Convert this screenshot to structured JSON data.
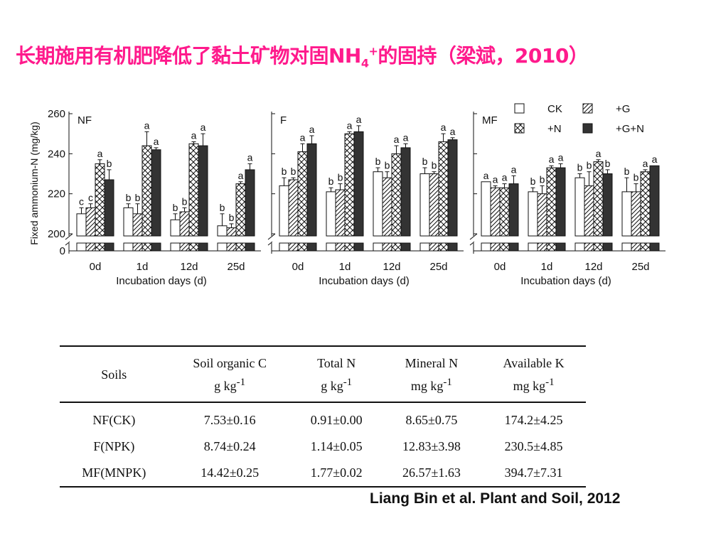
{
  "slide": {
    "title_main": "长期施用有机肥降低了黏土矿物对固NH",
    "title_sub": "4",
    "title_sup": "+",
    "title_tail": "的固持（梁斌，2010）",
    "citation": "Liang Bin et al. Plant and Soil, 2012"
  },
  "colors": {
    "title": "#ff1a8c",
    "solid_bar": "#333333",
    "open_bar": "#ffffff",
    "axis": "#111111"
  },
  "chart_data": {
    "type": "bar",
    "ylabel": "Fixed ammonium-N (mg/kg)",
    "xlabel": "Incubation days (d)",
    "ylim": [
      200,
      260
    ],
    "y_break": true,
    "yticks": [
      "260",
      "240",
      "220",
      "200",
      "0"
    ],
    "categories": [
      "0d",
      "1d",
      "12d",
      "25d"
    ],
    "legend": {
      "placement": "top-right",
      "entries": [
        {
          "label": "CK",
          "pattern": "open"
        },
        {
          "label": "+G",
          "pattern": "hatch"
        },
        {
          "label": "+N",
          "pattern": "cross"
        },
        {
          "label": "+G+N",
          "pattern": "solid"
        }
      ]
    },
    "panels": [
      {
        "name": "NF",
        "series": [
          {
            "pattern": "open",
            "values": [
              210,
              213,
              207,
              204
            ],
            "errors": [
              3,
              2,
              3,
              6
            ],
            "letters": [
              "c",
              "b",
              "b",
              "b"
            ]
          },
          {
            "pattern": "hatch",
            "values": [
              213,
              210,
              211,
              203
            ],
            "errors": [
              2,
              5,
              2,
              2
            ],
            "letters": [
              "c",
              "b",
              "b",
              "b"
            ]
          },
          {
            "pattern": "cross",
            "values": [
              235,
              244,
              245,
              225
            ],
            "errors": [
              2,
              7,
              1,
              1
            ],
            "letters": [
              "a",
              "a",
              "a",
              "a"
            ]
          },
          {
            "pattern": "solid",
            "values": [
              227,
              242,
              244,
              232
            ],
            "errors": [
              5,
              1,
              6,
              3
            ],
            "letters": [
              "b",
              "a",
              "a",
              "a"
            ]
          }
        ]
      },
      {
        "name": "F",
        "series": [
          {
            "pattern": "open",
            "values": [
              224,
              221,
              231,
              230
            ],
            "errors": [
              4,
              2,
              2,
              3
            ],
            "letters": [
              "b",
              "b",
              "b",
              "b"
            ]
          },
          {
            "pattern": "hatch",
            "values": [
              227,
              222,
              228,
              230
            ],
            "errors": [
              1,
              3,
              3,
              1
            ],
            "letters": [
              "b",
              "b",
              "b",
              "b"
            ]
          },
          {
            "pattern": "cross",
            "values": [
              241,
              250,
              240,
              246
            ],
            "errors": [
              4,
              1,
              4,
              4
            ],
            "letters": [
              "a",
              "a",
              "a",
              "a"
            ]
          },
          {
            "pattern": "solid",
            "values": [
              245,
              251,
              243,
              247
            ],
            "errors": [
              4,
              3,
              2,
              1
            ],
            "letters": [
              "a",
              "a",
              "a",
              "a"
            ]
          }
        ]
      },
      {
        "name": "MF",
        "series": [
          {
            "pattern": "open",
            "values": [
              226,
              221,
              228,
              221
            ],
            "errors": [
              0,
              2,
              2,
              7
            ],
            "letters": [
              "a",
              "b",
              "b",
              "b"
            ]
          },
          {
            "pattern": "hatch",
            "values": [
              223,
              220,
              224,
              221
            ],
            "errors": [
              1,
              4,
              7,
              4
            ],
            "letters": [
              "a",
              "b",
              "b",
              "b"
            ]
          },
          {
            "pattern": "cross",
            "values": [
              223,
              233,
              236,
              231
            ],
            "errors": [
              2,
              1,
              1,
              1
            ],
            "letters": [
              "a",
              "a",
              "a",
              "a"
            ]
          },
          {
            "pattern": "solid",
            "values": [
              225,
              233,
              230,
              234
            ],
            "errors": [
              4,
              2,
              2,
              0
            ],
            "letters": [
              "a",
              "a",
              "b",
              "a"
            ]
          }
        ]
      }
    ]
  },
  "table": {
    "headers": [
      {
        "line1": "Soils",
        "line2": ""
      },
      {
        "line1": "Soil organic C",
        "line2": "g kg",
        "sup": "-1"
      },
      {
        "line1": "Total N",
        "line2": "g kg",
        "sup": "-1"
      },
      {
        "line1": "Mineral N",
        "line2": "mg kg",
        "sup": "-1"
      },
      {
        "line1": "Available K",
        "line2": "mg kg",
        "sup": "-1"
      }
    ],
    "rows": [
      [
        "NF(CK)",
        "7.53±0.16",
        "0.91±0.00",
        "8.65±0.75",
        "174.2±4.25"
      ],
      [
        "F(NPK)",
        "8.74±0.24",
        "1.14±0.05",
        "12.83±3.98",
        "230.5±4.85"
      ],
      [
        "MF(MNPK)",
        "14.42±0.25",
        "1.77±0.02",
        "26.57±1.63",
        "394.7±7.31"
      ]
    ]
  }
}
